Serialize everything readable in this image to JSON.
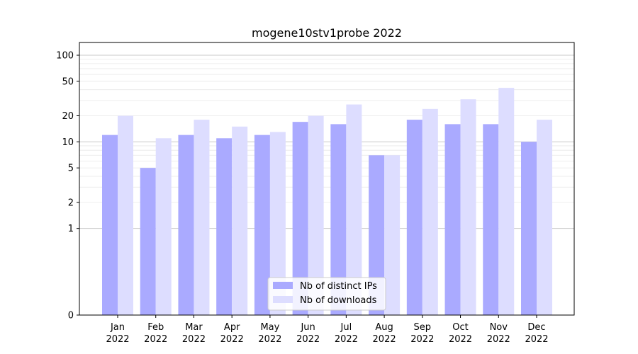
{
  "chart_data": {
    "type": "bar",
    "title": "mogene10stv1probe 2022",
    "xlabel": "",
    "ylabel": "",
    "y_scale": "symlog",
    "ylim": [
      0,
      120
    ],
    "y_ticks": [
      0,
      1,
      2,
      5,
      10,
      20,
      50,
      100
    ],
    "grid": "horizontal",
    "legend_position": "bottom-center",
    "categories": [
      [
        "Jan",
        "2022"
      ],
      [
        "Feb",
        "2022"
      ],
      [
        "Mar",
        "2022"
      ],
      [
        "Apr",
        "2022"
      ],
      [
        "May",
        "2022"
      ],
      [
        "Jun",
        "2022"
      ],
      [
        "Jul",
        "2022"
      ],
      [
        "Aug",
        "2022"
      ],
      [
        "Sep",
        "2022"
      ],
      [
        "Oct",
        "2022"
      ],
      [
        "Nov",
        "2022"
      ],
      [
        "Dec",
        "2022"
      ]
    ],
    "series": [
      {
        "name": "Nb of distinct IPs",
        "color": "#aaaaff",
        "values": [
          12,
          5,
          12,
          11,
          12,
          17,
          16,
          7,
          18,
          16,
          16,
          10
        ]
      },
      {
        "name": "Nb of downloads",
        "color": "#ddddff",
        "values": [
          20,
          11,
          18,
          15,
          13,
          20,
          27,
          7,
          24,
          31,
          42,
          18
        ]
      }
    ]
  }
}
